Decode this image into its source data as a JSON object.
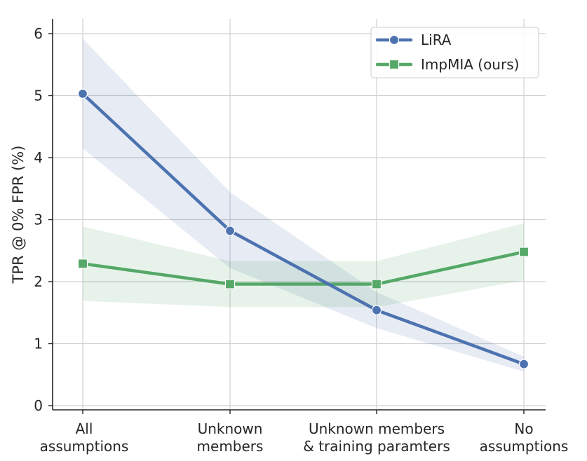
{
  "chart_data": {
    "type": "line",
    "title": "",
    "xlabel": "",
    "ylabel": "TPR @ 0% FPR (%)",
    "ylim": [
      0,
      6
    ],
    "yticks": [
      "0",
      "1",
      "2",
      "3",
      "4",
      "5",
      "6"
    ],
    "categories": [
      [
        "All",
        "assumptions"
      ],
      [
        "Unknown",
        "members"
      ],
      [
        "Unknown members",
        "& training paramters"
      ],
      [
        "No",
        "assumptions"
      ]
    ],
    "grid": true,
    "legend_position": "top-right",
    "series": [
      {
        "name": "LiRA",
        "marker": "circle",
        "color": "#4c72b0",
        "band_color": "#4c72b0",
        "values": [
          5.03,
          2.82,
          1.54,
          0.67
        ],
        "lower": [
          4.15,
          2.22,
          1.25,
          0.55
        ],
        "upper": [
          5.92,
          3.44,
          1.83,
          0.79
        ]
      },
      {
        "name": "ImpMIA (ours)",
        "marker": "square",
        "color": "#55a868",
        "band_color": "#55a868",
        "values": [
          2.29,
          1.96,
          1.96,
          2.48
        ],
        "lower": [
          1.69,
          1.59,
          1.59,
          2.02
        ],
        "upper": [
          2.89,
          2.33,
          2.33,
          2.94
        ]
      }
    ]
  }
}
